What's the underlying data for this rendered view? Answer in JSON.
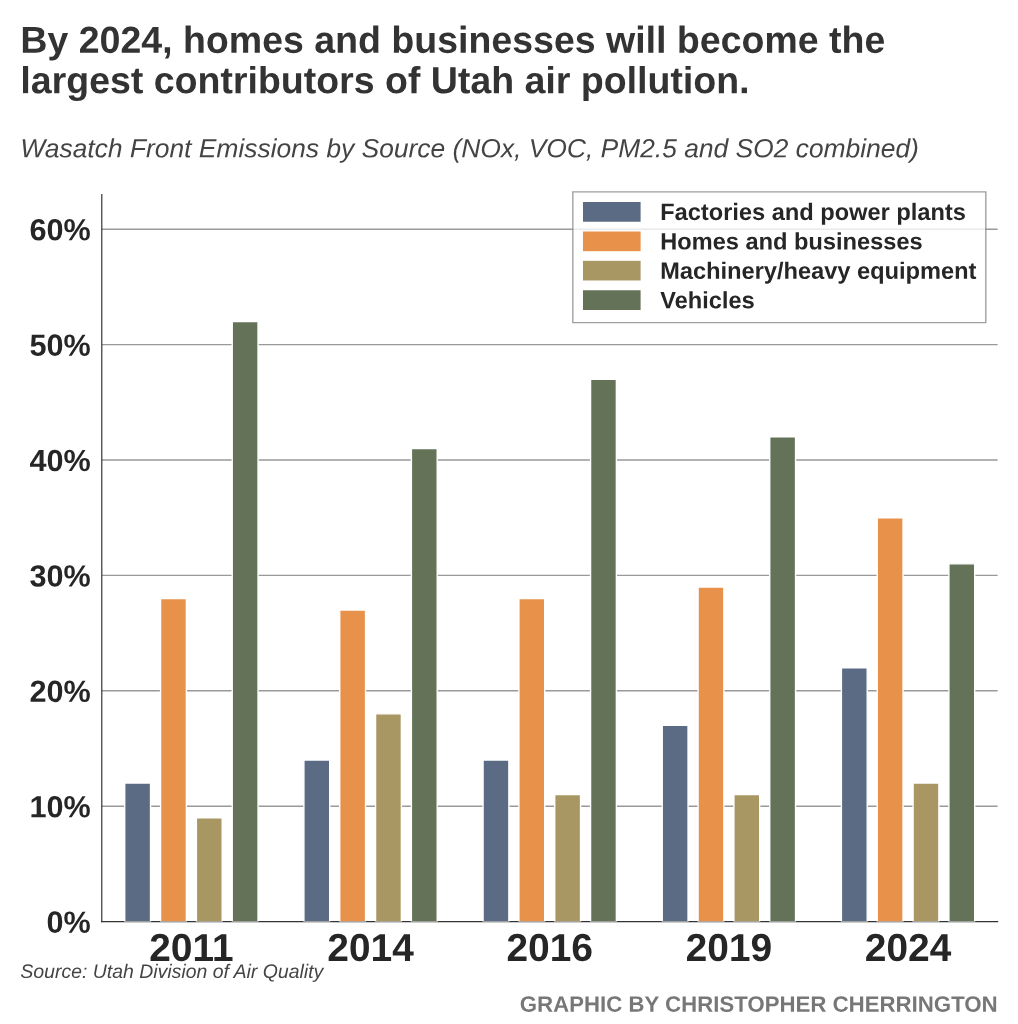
{
  "chart_data": {
    "type": "bar",
    "title": "By 2024, homes and businesses will become the largest contributors of Utah air pollution.",
    "subtitle": "Wasatch Front Emissions by Source (NOx, VOC, PM2.5 and SO2 combined)",
    "categories": [
      "2011",
      "2014",
      "2016",
      "2019",
      "2024"
    ],
    "series": [
      {
        "name": "Factories and power plants",
        "color": "#5c6b84",
        "values": [
          12,
          14,
          14,
          17,
          22
        ]
      },
      {
        "name": "Homes and businesses",
        "color": "#e8914a",
        "values": [
          28,
          27,
          28,
          29,
          35
        ]
      },
      {
        "name": "Machinery/heavy equipment",
        "color": "#a89663",
        "values": [
          9,
          18,
          11,
          11,
          12
        ]
      },
      {
        "name": "Vehicles",
        "color": "#647358",
        "values": [
          52,
          41,
          47,
          42,
          31
        ]
      }
    ],
    "ylim": [
      0,
      63
    ],
    "yticks": [
      {
        "value": 0,
        "label": "0%"
      },
      {
        "value": 10,
        "label": "10%"
      },
      {
        "value": 20,
        "label": "20%"
      },
      {
        "value": 30,
        "label": "30%"
      },
      {
        "value": 40,
        "label": "40%"
      },
      {
        "value": 50,
        "label": "50%"
      },
      {
        "value": 60,
        "label": "60%"
      }
    ],
    "grid": "y",
    "legend": "top right",
    "annotations": [
      "Source: Utah Division of Air Quality",
      "GRAPHIC BY CHRISTOPHER CHERRINGTON"
    ]
  }
}
